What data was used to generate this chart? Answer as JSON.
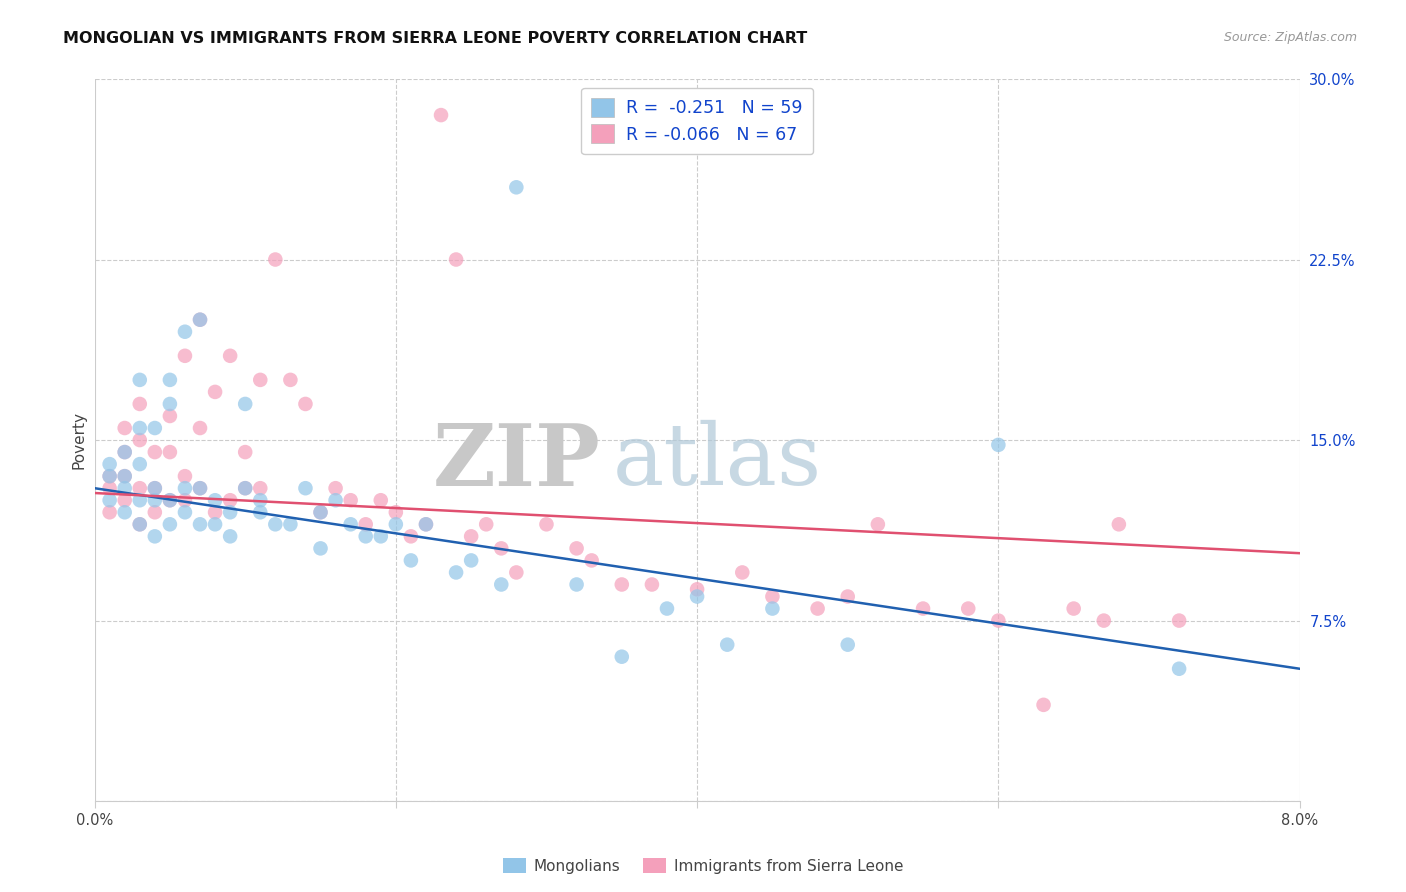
{
  "title": "MONGOLIAN VS IMMIGRANTS FROM SIERRA LEONE POVERTY CORRELATION CHART",
  "source": "Source: ZipAtlas.com",
  "ylabel": "Poverty",
  "yticks": [
    0.0,
    0.075,
    0.15,
    0.225,
    0.3
  ],
  "ytick_labels": [
    "",
    "7.5%",
    "15.0%",
    "22.5%",
    "30.0%"
  ],
  "xtick_positions": [
    0.0,
    0.02,
    0.04,
    0.06,
    0.08
  ],
  "xtick_labels": [
    "0.0%",
    "",
    "",
    "",
    "8.0%"
  ],
  "xlim": [
    0.0,
    0.08
  ],
  "ylim": [
    0.0,
    0.3
  ],
  "legend_label1": "Mongolians",
  "legend_label2": "Immigrants from Sierra Leone",
  "R1": -0.251,
  "N1": 59,
  "R2": -0.066,
  "N2": 67,
  "color_blue": "#92C5E8",
  "color_pink": "#F4A0BB",
  "line_color_blue": "#2060B0",
  "line_color_pink": "#E05070",
  "text_color_blue": "#1144CC",
  "background_color": "#FFFFFF",
  "watermark_zip": "ZIP",
  "watermark_atlas": "atlas",
  "grid_color": "#CCCCCC",
  "title_fontsize": 11.5,
  "axis_fontsize": 10.5,
  "source_fontsize": 9,
  "scatter_size": 110,
  "scatter_alpha": 0.7,
  "blue_line_y0": 0.13,
  "blue_line_y1": 0.055,
  "pink_line_y0": 0.128,
  "pink_line_y1": 0.103,
  "blue_x": [
    0.001,
    0.001,
    0.001,
    0.002,
    0.002,
    0.002,
    0.002,
    0.003,
    0.003,
    0.003,
    0.003,
    0.003,
    0.004,
    0.004,
    0.004,
    0.004,
    0.005,
    0.005,
    0.005,
    0.005,
    0.006,
    0.006,
    0.006,
    0.007,
    0.007,
    0.007,
    0.008,
    0.008,
    0.009,
    0.009,
    0.01,
    0.01,
    0.011,
    0.011,
    0.012,
    0.013,
    0.014,
    0.015,
    0.015,
    0.016,
    0.017,
    0.018,
    0.019,
    0.02,
    0.021,
    0.022,
    0.024,
    0.025,
    0.027,
    0.028,
    0.032,
    0.035,
    0.038,
    0.04,
    0.042,
    0.045,
    0.05,
    0.06,
    0.072
  ],
  "blue_y": [
    0.135,
    0.14,
    0.125,
    0.13,
    0.145,
    0.12,
    0.135,
    0.115,
    0.125,
    0.14,
    0.155,
    0.175,
    0.11,
    0.125,
    0.155,
    0.13,
    0.165,
    0.175,
    0.125,
    0.115,
    0.12,
    0.13,
    0.195,
    0.115,
    0.13,
    0.2,
    0.125,
    0.115,
    0.12,
    0.11,
    0.13,
    0.165,
    0.12,
    0.125,
    0.115,
    0.115,
    0.13,
    0.12,
    0.105,
    0.125,
    0.115,
    0.11,
    0.11,
    0.115,
    0.1,
    0.115,
    0.095,
    0.1,
    0.09,
    0.255,
    0.09,
    0.06,
    0.08,
    0.085,
    0.065,
    0.08,
    0.065,
    0.148,
    0.055
  ],
  "pink_x": [
    0.001,
    0.001,
    0.001,
    0.002,
    0.002,
    0.002,
    0.002,
    0.003,
    0.003,
    0.003,
    0.003,
    0.004,
    0.004,
    0.004,
    0.005,
    0.005,
    0.005,
    0.006,
    0.006,
    0.006,
    0.007,
    0.007,
    0.007,
    0.008,
    0.008,
    0.009,
    0.009,
    0.01,
    0.01,
    0.011,
    0.011,
    0.012,
    0.013,
    0.014,
    0.015,
    0.016,
    0.017,
    0.018,
    0.019,
    0.02,
    0.021,
    0.022,
    0.023,
    0.024,
    0.025,
    0.026,
    0.027,
    0.028,
    0.03,
    0.032,
    0.033,
    0.035,
    0.037,
    0.04,
    0.043,
    0.045,
    0.048,
    0.05,
    0.052,
    0.055,
    0.058,
    0.06,
    0.063,
    0.065,
    0.067,
    0.068,
    0.072
  ],
  "pink_y": [
    0.135,
    0.13,
    0.12,
    0.145,
    0.125,
    0.135,
    0.155,
    0.115,
    0.13,
    0.15,
    0.165,
    0.12,
    0.13,
    0.145,
    0.125,
    0.16,
    0.145,
    0.135,
    0.125,
    0.185,
    0.155,
    0.13,
    0.2,
    0.12,
    0.17,
    0.125,
    0.185,
    0.13,
    0.145,
    0.175,
    0.13,
    0.225,
    0.175,
    0.165,
    0.12,
    0.13,
    0.125,
    0.115,
    0.125,
    0.12,
    0.11,
    0.115,
    0.285,
    0.225,
    0.11,
    0.115,
    0.105,
    0.095,
    0.115,
    0.105,
    0.1,
    0.09,
    0.09,
    0.088,
    0.095,
    0.085,
    0.08,
    0.085,
    0.115,
    0.08,
    0.08,
    0.075,
    0.04,
    0.08,
    0.075,
    0.115,
    0.075
  ]
}
